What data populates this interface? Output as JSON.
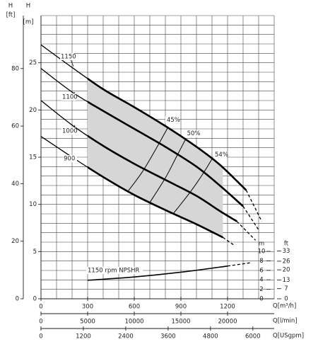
{
  "chart_data": {
    "type": "line",
    "x_axes": [
      {
        "label": "Q[m³/h]",
        "lim": [
          0,
          1500
        ],
        "ticks": [
          0,
          300,
          600,
          900,
          1200
        ]
      },
      {
        "label": "Q[l/min]",
        "lim": [
          0,
          25000
        ],
        "ticks": [
          0,
          5000,
          10000,
          15000,
          20000
        ]
      },
      {
        "label": "Q[USgpm]",
        "lim": [
          0,
          6604
        ],
        "ticks": [
          0,
          1200,
          2400,
          3600,
          4800,
          6000
        ]
      }
    ],
    "y_axes": [
      {
        "name": "H",
        "unit": "[m]",
        "lim": [
          0,
          30
        ],
        "ticks": [
          0,
          5,
          10,
          15,
          20,
          25
        ]
      },
      {
        "name": "H",
        "unit": "[ft]",
        "lim": [
          0,
          98.4
        ],
        "ticks": [
          0,
          20,
          40,
          60,
          80
        ]
      }
    ],
    "npsh_axes": [
      {
        "unit": "m",
        "lim": [
          0,
          10
        ],
        "ticks": [
          0,
          2,
          4,
          6,
          8,
          10
        ]
      },
      {
        "unit": "ft",
        "lim": [
          0,
          32.8
        ],
        "ticks": [
          0,
          7,
          13,
          20,
          26,
          33
        ]
      }
    ],
    "grid": {
      "x_step": 100,
      "y_step": 1
    },
    "shaded_q": [
      300,
      1170
    ],
    "series": [
      {
        "name": "1150",
        "q": [
          0,
          200,
          400,
          600,
          800,
          1000,
          1150,
          1320
        ],
        "h": [
          26.9,
          24.5,
          22.2,
          20.3,
          18.3,
          16.1,
          14.2,
          11.5
        ],
        "ext_q": 1420,
        "ext_h": 8.2
      },
      {
        "name": "1100",
        "q": [
          0,
          200,
          400,
          600,
          800,
          1000,
          1150,
          1300
        ],
        "h": [
          24.4,
          21.9,
          19.9,
          18.0,
          16.1,
          14.0,
          12.0,
          9.8
        ],
        "ext_q": 1400,
        "ext_h": 7.3
      },
      {
        "name": "1000",
        "q": [
          0,
          200,
          400,
          600,
          800,
          1000,
          1150,
          1260
        ],
        "h": [
          21.0,
          18.4,
          16.2,
          14.3,
          12.6,
          10.9,
          9.3,
          8.2
        ],
        "ext_q": 1380,
        "ext_h": 6.2
      },
      {
        "name": "900",
        "q": [
          0,
          200,
          400,
          600,
          800,
          1000,
          1170
        ],
        "h": [
          17.2,
          15.0,
          12.9,
          11.0,
          9.4,
          7.9,
          6.5
        ],
        "ext_q": 1240,
        "ext_h": 5.7
      }
    ],
    "efficiency": [
      {
        "name": "45%",
        "q": [
          560,
          650,
          730,
          818
        ],
        "h": [
          11.4,
          13.4,
          15.6,
          18.2
        ]
      },
      {
        "name": "50%",
        "q": [
          700,
          800,
          870,
          930
        ],
        "h": [
          10.2,
          12.8,
          15.0,
          16.9
        ]
      },
      {
        "name": "54%",
        "q": [
          850,
          960,
          1040,
          1100
        ],
        "h": [
          9.0,
          11.3,
          13.2,
          14.8
        ]
      }
    ],
    "npshr": {
      "name": "1150 rpm NPSHR",
      "q": [
        300,
        600,
        900,
        1200
      ],
      "m": [
        3.9,
        4.6,
        5.6,
        6.9
      ],
      "ext_q": 1350,
      "ext_m": 7.6
    }
  }
}
